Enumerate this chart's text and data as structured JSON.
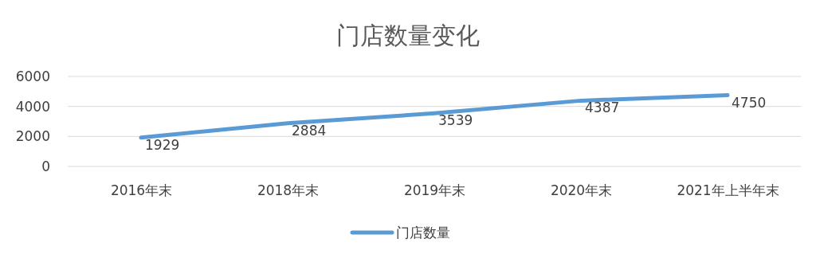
{
  "chart_data": {
    "type": "line",
    "title": "门店数量变化",
    "categories": [
      "2016年末",
      "2018年末",
      "2019年末",
      "2020年末",
      "2021年上半年末"
    ],
    "series": [
      {
        "name": "门店数量",
        "color": "#5b9bd5",
        "values": [
          1929,
          2884,
          3539,
          4387,
          4750
        ]
      }
    ],
    "ylim": [
      0,
      6000
    ],
    "yticks": [
      0,
      2000,
      4000,
      6000
    ],
    "grid": "y",
    "legend": "bottom",
    "data_labels": true,
    "marker": "none",
    "line_style": "solid"
  }
}
